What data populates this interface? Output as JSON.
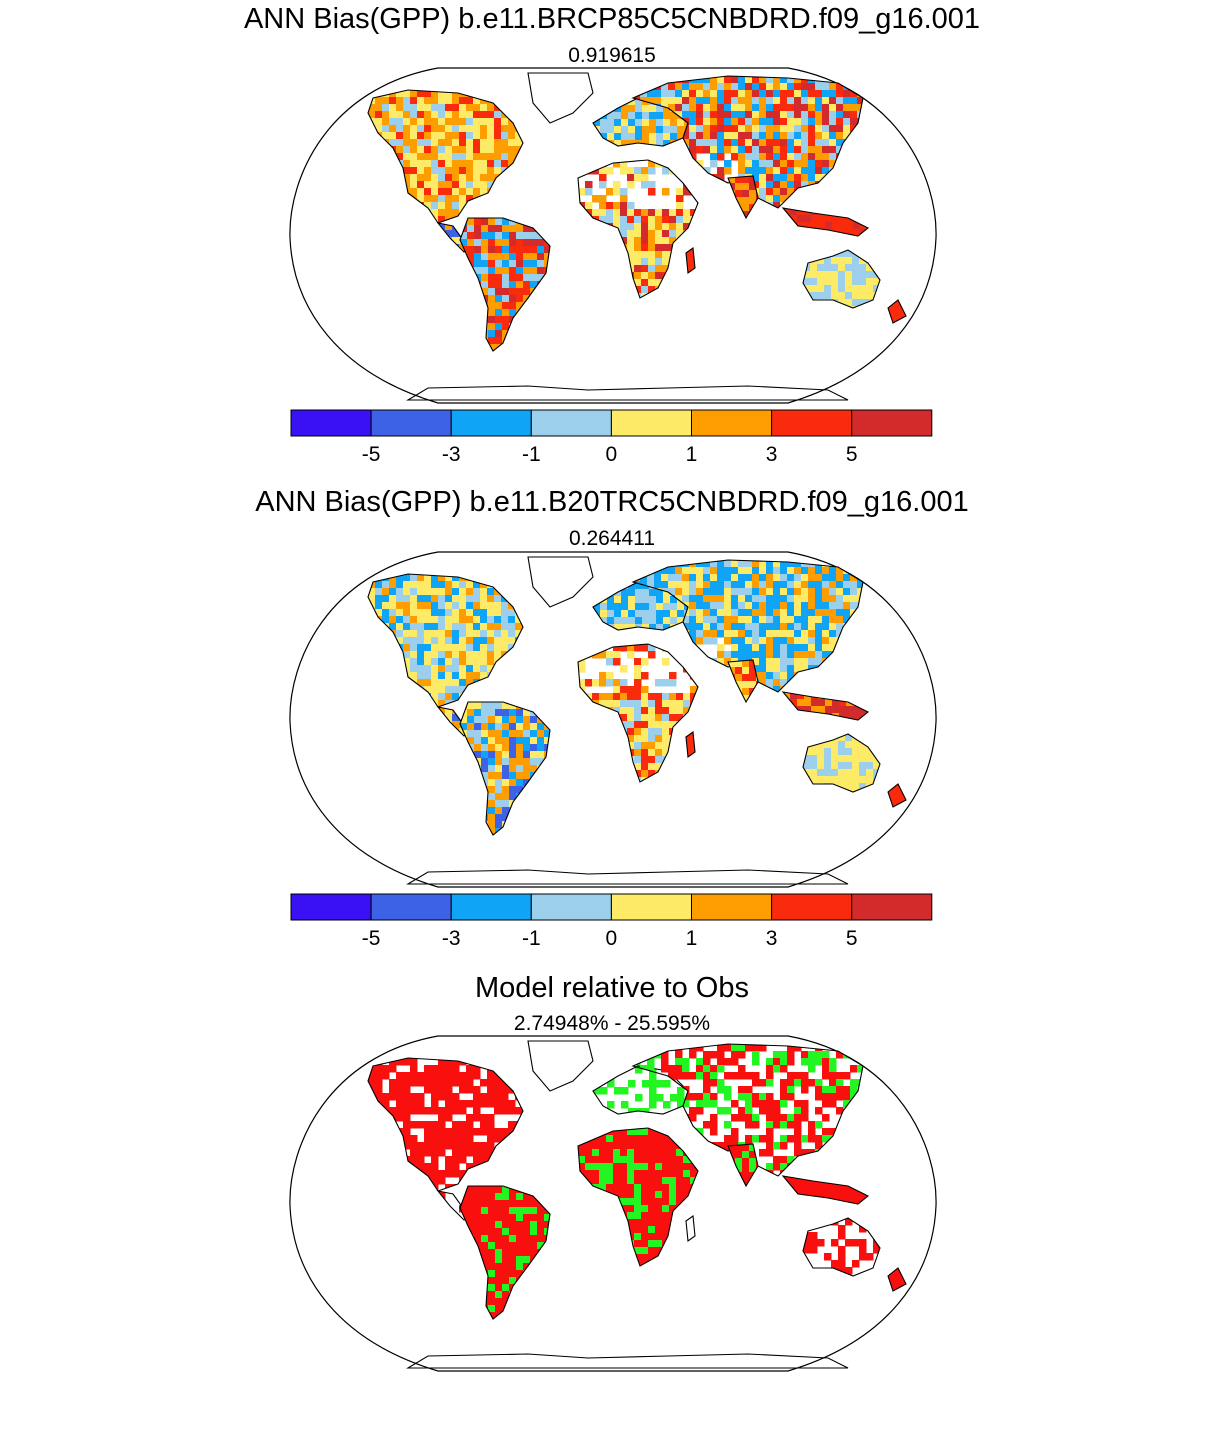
{
  "panels": [
    {
      "title": "ANN Bias(GPP) b.e11.BRCP85C5CNBDRD.f09_g16.001",
      "subtitle": "0.919615",
      "kind": "bias"
    },
    {
      "title": "ANN Bias(GPP) b.e11.B20TRC5CNBDRD.f09_g16.001",
      "subtitle": "0.264411",
      "kind": "bias"
    },
    {
      "title": "Model relative to Obs",
      "subtitle": "2.74948% - 25.595%",
      "kind": "relative"
    }
  ],
  "colorbar": {
    "colors": [
      "#3a10f5",
      "#3d62e6",
      "#0fa4f5",
      "#9ccfeb",
      "#fdea66",
      "#fd9d00",
      "#fa2b0c",
      "#d32b2b"
    ],
    "labels": [
      "-5",
      "-3",
      "-1",
      "0",
      "1",
      "3",
      "5"
    ]
  },
  "relative_colors": {
    "model_better": "#fa0f0f",
    "model_worse": "#22f522"
  },
  "colors": {
    "coastline": "#000000",
    "background": "#ffffff"
  }
}
